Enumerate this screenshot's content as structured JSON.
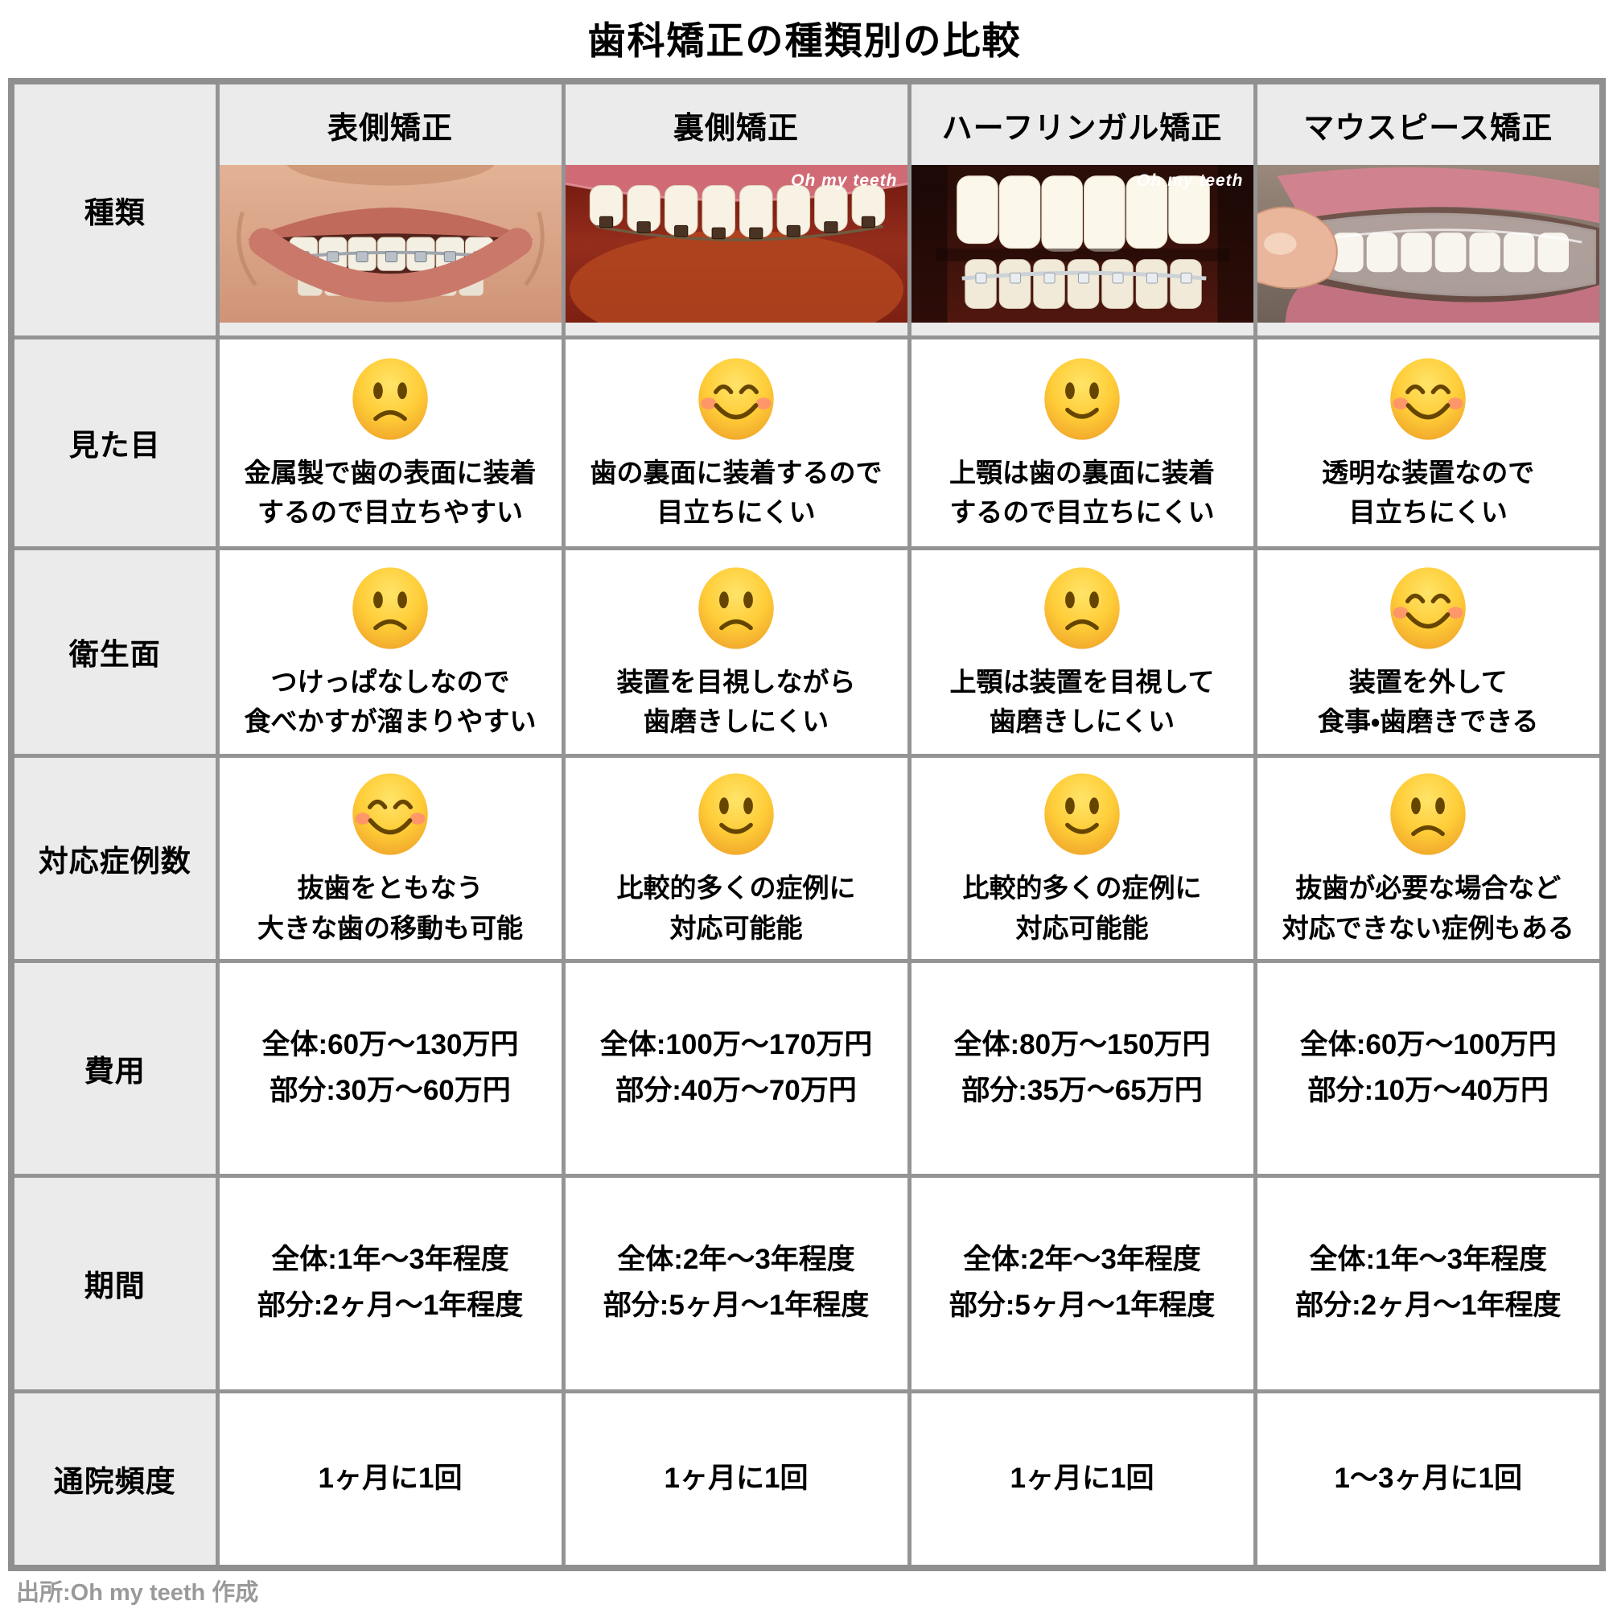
{
  "title": "歯科矯正の種類別の比較",
  "source_note": "出所:Oh my teeth 作成",
  "colors": {
    "header_cell_bg": "#ebebeb",
    "grid_border": "#949494",
    "emoji_yellow": "#ffcd38",
    "watermark_text": "#ffffff",
    "footer_text": "#9a9a9a"
  },
  "chart_data": {
    "type": "table",
    "title": "歯科矯正の種類別の比較",
    "row_headers": [
      "種類",
      "見た目",
      "衛生面",
      "対応症例数",
      "費用",
      "期間",
      "通院頻度"
    ],
    "column_headers": [
      "表側矯正",
      "裏側矯正",
      "ハーフリンガル矯正",
      "マウスピース矯正"
    ],
    "mood_legend": {
      "sad": "slightly-frowning-face",
      "neutral": "slightly-smiling-face",
      "happy": "smiling-face-with-smiling-eyes"
    },
    "columns": [
      {
        "name": "表側矯正",
        "image": {
          "kind": "front-braces",
          "watermark": ""
        },
        "looks": {
          "mood": "sad",
          "text": "金属製で歯の表面に装着\nするので目立ちやすい"
        },
        "hygiene": {
          "mood": "sad",
          "text": "つけっぱなしなので\n食べかすが溜まりやすい"
        },
        "cases": {
          "mood": "happy",
          "text": "抜歯をともなう\n大きな歯の移動も可能"
        },
        "cost": "全体:60万〜130万円\n部分:30万〜60万円",
        "period": "全体:1年〜3年程度\n部分:2ヶ月〜1年程度",
        "visits": "1ヶ月に1回"
      },
      {
        "name": "裏側矯正",
        "image": {
          "kind": "lingual-braces",
          "watermark": "Oh my teeth"
        },
        "looks": {
          "mood": "happy",
          "text": "歯の裏面に装着するので\n目立ちにくい"
        },
        "hygiene": {
          "mood": "sad",
          "text": "装置を目視しながら\n歯磨きしにくい"
        },
        "cases": {
          "mood": "neutral",
          "text": "比較的多くの症例に\n対応可能能"
        },
        "cost": "全体:100万〜170万円\n部分:40万〜70万円",
        "period": "全体:2年〜3年程度\n部分:5ヶ月〜1年程度",
        "visits": "1ヶ月に1回"
      },
      {
        "name": "ハーフリンガル矯正",
        "image": {
          "kind": "half-lingual-braces",
          "watermark": "Oh my teeth"
        },
        "looks": {
          "mood": "neutral",
          "text": "上顎は歯の裏面に装着\nするので目立ちにくい"
        },
        "hygiene": {
          "mood": "sad",
          "text": "上顎は装置を目視して\n歯磨きしにくい"
        },
        "cases": {
          "mood": "neutral",
          "text": "比較的多くの症例に\n対応可能能"
        },
        "cost": "全体:80万〜150万円\n部分:35万〜65万円",
        "period": "全体:2年〜3年程度\n部分:5ヶ月〜1年程度",
        "visits": "1ヶ月に1回"
      },
      {
        "name": "マウスピース矯正",
        "image": {
          "kind": "clear-aligner",
          "watermark": ""
        },
        "looks": {
          "mood": "happy",
          "text": "透明な装置なので\n目立ちにくい"
        },
        "hygiene": {
          "mood": "happy",
          "text": "装置を外して\n食事・歯磨きできる"
        },
        "cases": {
          "mood": "sad",
          "text": "抜歯が必要な場合など\n対応できない症例もある"
        },
        "cost": "全体:60万〜100万円\n部分:10万〜40万円",
        "period": "全体:1年〜3年程度\n部分:2ヶ月〜1年程度",
        "visits": "1〜3ヶ月に1回"
      }
    ]
  }
}
